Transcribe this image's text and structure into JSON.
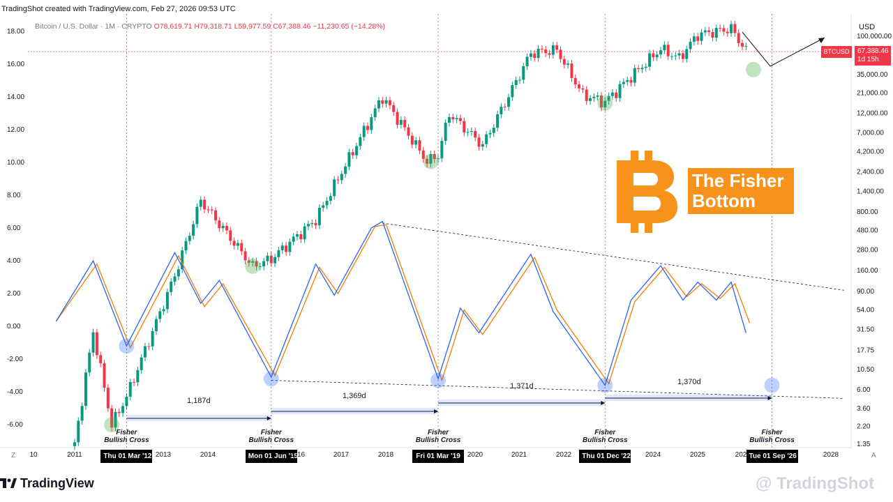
{
  "header": {
    "credit": "TradingShot created with TradingView.com, Feb 27, 2026 09:53 UTC",
    "symbol": "Bitcoin / U.S. Dollar · 1M · CRYPTO",
    "open": "O78,619.71",
    "high": "H79,318.71",
    "low": "L59,977.59",
    "close": "C67,388.46",
    "change": "−11,230.65 (−14.28%)"
  },
  "axes": {
    "currency": "USD",
    "right_ticks": [
      "100,000.00",
      "35,000.00",
      "21,000.00",
      "12,000.00",
      "7,000.00",
      "4,200.00",
      "2,400.00",
      "1,400.00",
      "800.00",
      "480.00",
      "280.00",
      "160.00",
      "90.00",
      "54.00",
      "31.50",
      "17.75",
      "10.50",
      "6.00",
      "3.60",
      "2.20",
      "1.35"
    ],
    "left_ticks": [
      "18.00",
      "16.00",
      "14.00",
      "12.00",
      "10.00",
      "8.00",
      "6.00",
      "4.00",
      "2.00",
      "0.00",
      "-2.00",
      "-4.00",
      "-6.00"
    ],
    "x_ticks": [
      "10",
      "2011",
      "2013",
      "2014",
      "2016",
      "2017",
      "2018",
      "2020",
      "2021",
      "2022",
      "2024",
      "2025",
      "202",
      "2028"
    ],
    "corner_left": "Z",
    "corner_right": "A"
  },
  "price_tag": {
    "symbol": "BTCUSD",
    "price": "67,388.46",
    "countdown": "1d 15h",
    "color": "#f23645"
  },
  "overlay": {
    "title_line1": "The Fisher",
    "title_line2": "Bottom",
    "logo_color": "#f7931a"
  },
  "crosses": [
    {
      "line1": "Fisher",
      "line2": "Bullish Cross",
      "date": "Thu 01 Mar '12"
    },
    {
      "line1": "Fisher",
      "line2": "Bullish Cross",
      "date": "Mon 01 Jun '15"
    },
    {
      "line1": "Fisher",
      "line2": "Bullish Cross",
      "date": "Fri 01 Mar '19"
    },
    {
      "line1": "Fisher",
      "line2": "Bullish Cross",
      "date": "Thu 01 Dec '22"
    },
    {
      "line1": "Fisher",
      "line2": "Bullish Cross",
      "date": "Tue 01 Sep '26"
    }
  ],
  "intervals": [
    "1,187d",
    "1,369d",
    "1,371d",
    "1,370d"
  ],
  "footer": {
    "logo": "TradingView",
    "watermark": "@ TradingShot"
  },
  "chart_data": {
    "type": "line",
    "series": [
      {
        "name": "",
        "x": [
          "2010-08",
          "2011-06",
          "2011-11",
          "2012-03",
          "2013-04",
          "2013-11",
          "2015-01",
          "2015-06",
          "2016-06",
          "2017-12",
          "2018-12",
          "2019-03",
          "2019-06",
          "2020-03",
          "2021-04",
          "2021-11",
          "2022-06",
          "2022-12",
          "2023-06",
          "2024-03",
          "2024-08",
          "2025-01",
          "2025-10",
          "2026-02"
        ],
        "values": [
          0.06,
          30,
          2.3,
          5,
          140,
          1100,
          180,
          220,
          650,
          19000,
          3200,
          3800,
          12000,
          5000,
          63000,
          69000,
          20000,
          16500,
          30000,
          71000,
          55000,
          105000,
          124000,
          67388
        ]
      }
    ],
    "fisher": {
      "blue": [
        {
          "x": "2010-08",
          "y": 0.3
        },
        {
          "x": "2011-06",
          "y": 4.0
        },
        {
          "x": "2012-03",
          "y": -1.2
        },
        {
          "x": "2013-04",
          "y": 4.5
        },
        {
          "x": "2013-11",
          "y": 1.4
        },
        {
          "x": "2014-04",
          "y": 2.8
        },
        {
          "x": "2015-06",
          "y": -3.1
        },
        {
          "x": "2016-06",
          "y": 3.8
        },
        {
          "x": "2016-11",
          "y": 1.9
        },
        {
          "x": "2017-09",
          "y": 6.0
        },
        {
          "x": "2017-12",
          "y": 6.4
        },
        {
          "x": "2019-03",
          "y": -3.2
        },
        {
          "x": "2019-09",
          "y": 1.1
        },
        {
          "x": "2020-02",
          "y": -0.4
        },
        {
          "x": "2021-04",
          "y": 4.4
        },
        {
          "x": "2021-10",
          "y": 0.9
        },
        {
          "x": "2022-12",
          "y": -3.6
        },
        {
          "x": "2023-07",
          "y": 1.6
        },
        {
          "x": "2024-03",
          "y": 3.7
        },
        {
          "x": "2024-09",
          "y": 1.6
        },
        {
          "x": "2025-01",
          "y": 2.7
        },
        {
          "x": "2025-06",
          "y": 1.6
        },
        {
          "x": "2025-10",
          "y": 2.7
        },
        {
          "x": "2026-02",
          "y": -0.4
        }
      ],
      "orange": [
        {
          "x": "2010-08",
          "y": 0.3
        },
        {
          "x": "2011-07",
          "y": 3.8
        },
        {
          "x": "2012-04",
          "y": -1.3
        },
        {
          "x": "2013-05",
          "y": 4.3
        },
        {
          "x": "2013-12",
          "y": 1.2
        },
        {
          "x": "2014-05",
          "y": 2.6
        },
        {
          "x": "2015-07",
          "y": -3.0
        },
        {
          "x": "2016-07",
          "y": 3.6
        },
        {
          "x": "2016-12",
          "y": 2.0
        },
        {
          "x": "2017-10",
          "y": 6.1
        },
        {
          "x": "2018-01",
          "y": 6.2
        },
        {
          "x": "2019-04",
          "y": -3.3
        },
        {
          "x": "2019-10",
          "y": 1.0
        },
        {
          "x": "2020-03",
          "y": -0.5
        },
        {
          "x": "2021-05",
          "y": 4.2
        },
        {
          "x": "2021-11",
          "y": 1.0
        },
        {
          "x": "2023-01",
          "y": -3.5
        },
        {
          "x": "2023-08",
          "y": 1.5
        },
        {
          "x": "2024-04",
          "y": 3.6
        },
        {
          "x": "2024-10",
          "y": 1.8
        },
        {
          "x": "2025-02",
          "y": 2.6
        },
        {
          "x": "2025-07",
          "y": 1.7
        },
        {
          "x": "2025-11",
          "y": 2.6
        },
        {
          "x": "2026-03",
          "y": 0.2
        }
      ]
    },
    "xlim": [
      "2009-10",
      "2028-09"
    ],
    "left_ylim": [
      -7,
      19
    ],
    "right_axis_scale": "log",
    "grid": false,
    "legend": "none"
  }
}
